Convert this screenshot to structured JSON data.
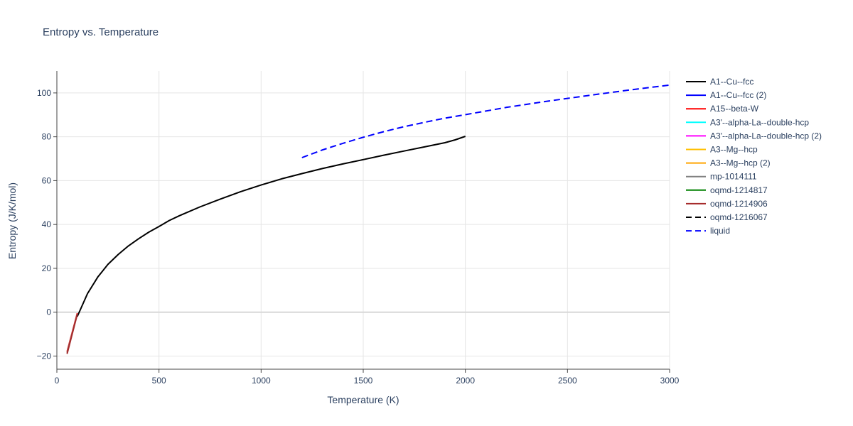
{
  "chart_data": {
    "type": "line",
    "title": "Entropy vs. Temperature",
    "xlabel": "Temperature (K)",
    "ylabel": "Entropy (J/K/mol)",
    "xlim": [
      0,
      3000
    ],
    "ylim": [
      -26,
      110
    ],
    "x_ticks": [
      0,
      500,
      1000,
      1500,
      2000,
      2500,
      3000
    ],
    "y_ticks": [
      -20,
      0,
      20,
      40,
      60,
      80,
      100
    ],
    "grid": true,
    "legend_position": "right",
    "series": [
      {
        "name": "A1--Cu--fcc",
        "color": "#000000",
        "dash": "solid",
        "x": [
          100,
          150,
          200,
          250,
          300,
          350,
          400,
          450,
          500,
          550,
          600,
          700,
          800,
          900,
          1000,
          1100,
          1200,
          1300,
          1400,
          1500,
          1600,
          1700,
          1800,
          1900,
          1950,
          2000
        ],
        "y": [
          -2,
          8.5,
          16,
          21.8,
          26.3,
          30.2,
          33.5,
          36.5,
          39.1,
          41.8,
          44,
          48,
          51.6,
          55,
          58,
          60.8,
          63.2,
          65.5,
          67.6,
          69.6,
          71.6,
          73.5,
          75.4,
          77.3,
          78.6,
          80.2
        ]
      },
      {
        "name": "A1--Cu--fcc (2)",
        "color": "#0000ff",
        "dash": "solid",
        "x": [],
        "y": []
      },
      {
        "name": "A15--beta-W",
        "color": "#ff0000",
        "dash": "solid",
        "x": [
          50,
          100
        ],
        "y": [
          -18,
          -0.5
        ]
      },
      {
        "name": "A3'--alpha-La--double-hcp",
        "color": "#00ffff",
        "dash": "solid",
        "x": [],
        "y": []
      },
      {
        "name": "A3'--alpha-La--double-hcp (2)",
        "color": "#ff00ff",
        "dash": "solid",
        "x": [],
        "y": []
      },
      {
        "name": "A3--Mg--hcp",
        "color": "#ffbf00",
        "dash": "solid",
        "x": [],
        "y": []
      },
      {
        "name": "A3--Mg--hcp (2)",
        "color": "#ffa500",
        "dash": "solid",
        "x": [],
        "y": []
      },
      {
        "name": "mp-1014111",
        "color": "#808080",
        "dash": "solid",
        "x": [
          50,
          100
        ],
        "y": [
          -18.5,
          -0.8
        ]
      },
      {
        "name": "oqmd-1214817",
        "color": "#008000",
        "dash": "solid",
        "x": [],
        "y": []
      },
      {
        "name": "oqmd-1214906",
        "color": "#a52a2a",
        "dash": "solid",
        "x": [
          50,
          100
        ],
        "y": [
          -19,
          -1
        ]
      },
      {
        "name": "oqmd-1216067",
        "color": "#000000",
        "dash": "dash",
        "x": [],
        "y": []
      },
      {
        "name": "liquid",
        "color": "#0000ff",
        "dash": "dash",
        "x": [
          1200,
          1300,
          1400,
          1500,
          1600,
          1700,
          1800,
          1900,
          2000,
          2200,
          2400,
          2600,
          2800,
          3000
        ],
        "y": [
          70.5,
          74,
          77,
          79.8,
          82.3,
          84.6,
          86.6,
          88.5,
          90.1,
          93.4,
          96.2,
          98.8,
          101.3,
          103.6
        ]
      }
    ]
  }
}
